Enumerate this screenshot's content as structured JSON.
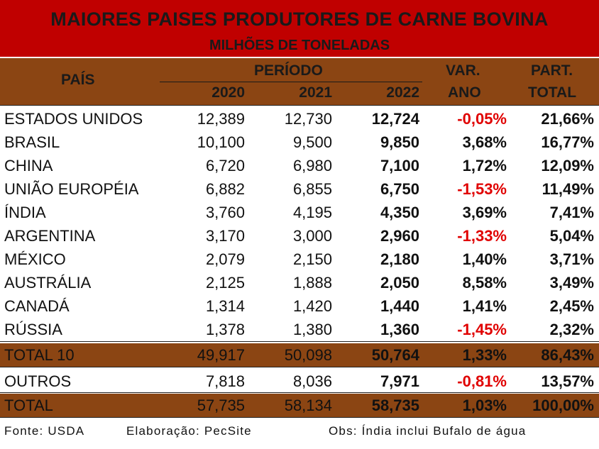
{
  "title": "MAIORES PAISES PRODUTORES DE CARNE BOVINA",
  "subtitle": "MILHÕES DE TONELADAS",
  "headers": {
    "country": "PAÍS",
    "period": "PERÍODO",
    "y2020": "2020",
    "y2021": "2021",
    "y2022": "2022",
    "var_line1": "VAR.",
    "var_line2": "ANO",
    "part_line1": "PART.",
    "part_line2": "TOTAL"
  },
  "rows": [
    {
      "name": "ESTADOS UNIDOS",
      "y2020": "12,389",
      "y2021": "12,730",
      "y2022": "12,724",
      "var": "-0,05%",
      "part": "21,66%"
    },
    {
      "name": "BRASIL",
      "y2020": "10,100",
      "y2021": "9,500",
      "y2022": "9,850",
      "var": "3,68%",
      "part": "16,77%"
    },
    {
      "name": "CHINA",
      "y2020": "6,720",
      "y2021": "6,980",
      "y2022": "7,100",
      "var": "1,72%",
      "part": "12,09%"
    },
    {
      "name": "UNIÃO EUROPÉIA",
      "y2020": "6,882",
      "y2021": "6,855",
      "y2022": "6,750",
      "var": "-1,53%",
      "part": "11,49%"
    },
    {
      "name": "ÍNDIA",
      "y2020": "3,760",
      "y2021": "4,195",
      "y2022": "4,350",
      "var": "3,69%",
      "part": "7,41%"
    },
    {
      "name": "ARGENTINA",
      "y2020": "3,170",
      "y2021": "3,000",
      "y2022": "2,960",
      "var": "-1,33%",
      "part": "5,04%"
    },
    {
      "name": "MÉXICO",
      "y2020": "2,079",
      "y2021": "2,150",
      "y2022": "2,180",
      "var": "1,40%",
      "part": "3,71%"
    },
    {
      "name": "AUSTRÁLIA",
      "y2020": "2,125",
      "y2021": "1,888",
      "y2022": "2,050",
      "var": "8,58%",
      "part": "3,49%"
    },
    {
      "name": "CANADÁ",
      "y2020": "1,314",
      "y2021": "1,420",
      "y2022": "1,440",
      "var": "1,41%",
      "part": "2,45%"
    },
    {
      "name": "RÚSSIA",
      "y2020": "1,378",
      "y2021": "1,380",
      "y2022": "1,360",
      "var": "-1,45%",
      "part": "2,32%"
    }
  ],
  "total10": {
    "name": "TOTAL 10",
    "y2020": "49,917",
    "y2021": "50,098",
    "y2022": "50,764",
    "var": "1,33%",
    "part": "86,43%"
  },
  "others": {
    "name": "OUTROS",
    "y2020": "7,818",
    "y2021": "8,036",
    "y2022": "7,971",
    "var": "-0,81%",
    "part": "13,57%"
  },
  "total": {
    "name": "TOTAL",
    "y2020": "57,735",
    "y2021": "58,134",
    "y2022": "58,735",
    "var": "1,03%",
    "part": "100,00%"
  },
  "footer": {
    "source": "Fonte: USDA",
    "author": "Elaboração: PecSite",
    "note": "Obs: Índia inclui Bufalo de água"
  },
  "colors": {
    "title_band": "#c00000",
    "header_band": "#8b4513",
    "negative": "#e00000"
  }
}
